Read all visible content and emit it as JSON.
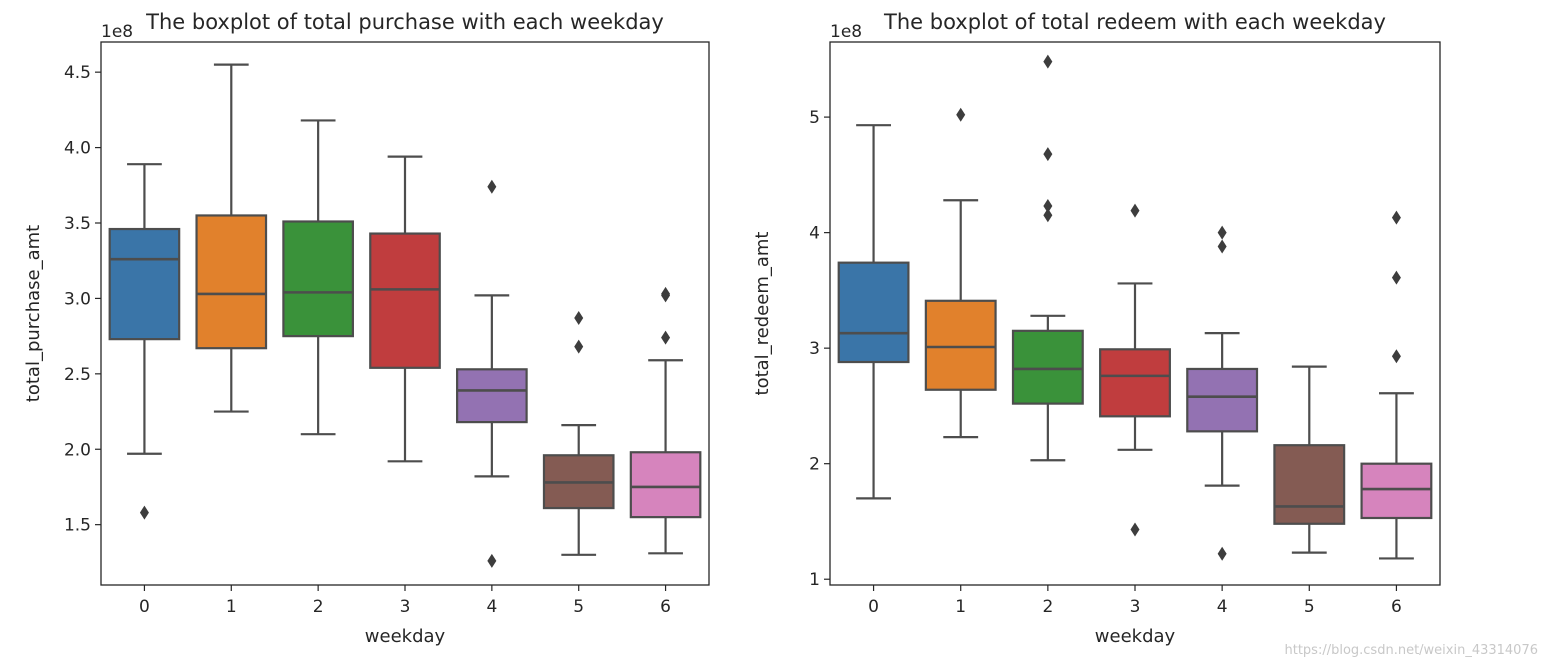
{
  "chart_data": [
    {
      "type": "box",
      "title": "The boxplot of total purchase with each weekday",
      "xlabel": "weekday",
      "ylabel": "total_purchase_amt",
      "offset_label": "1e8",
      "categories": [
        "0",
        "1",
        "2",
        "3",
        "4",
        "5",
        "6"
      ],
      "ylim": [
        1.1,
        4.7
      ],
      "yticks": [
        1.5,
        2.0,
        2.5,
        3.0,
        3.5,
        4.0,
        4.5
      ],
      "ytick_labels": [
        "1.5",
        "2.0",
        "2.5",
        "3.0",
        "3.5",
        "4.0",
        "4.5"
      ],
      "colors": [
        "#3a75a8",
        "#e1812c",
        "#3a923a",
        "#c03d3e",
        "#9372b2",
        "#845b53",
        "#d684bd"
      ],
      "boxes": [
        {
          "category": "0",
          "whisker_low": 1.97,
          "q1": 2.73,
          "median": 3.26,
          "q3": 3.46,
          "whisker_high": 3.89,
          "outliers": [
            1.58
          ]
        },
        {
          "category": "1",
          "whisker_low": 2.25,
          "q1": 2.67,
          "median": 3.03,
          "q3": 3.55,
          "whisker_high": 4.55,
          "outliers": []
        },
        {
          "category": "2",
          "whisker_low": 2.1,
          "q1": 2.75,
          "median": 3.04,
          "q3": 3.51,
          "whisker_high": 4.18,
          "outliers": []
        },
        {
          "category": "3",
          "whisker_low": 1.92,
          "q1": 2.54,
          "median": 3.06,
          "q3": 3.43,
          "whisker_high": 3.94,
          "outliers": []
        },
        {
          "category": "4",
          "whisker_low": 1.82,
          "q1": 2.18,
          "median": 2.39,
          "q3": 2.53,
          "whisker_high": 3.02,
          "outliers": [
            3.74,
            1.26
          ]
        },
        {
          "category": "5",
          "whisker_low": 1.3,
          "q1": 1.61,
          "median": 1.78,
          "q3": 1.96,
          "whisker_high": 2.16,
          "outliers": [
            2.87,
            2.68
          ]
        },
        {
          "category": "6",
          "whisker_low": 1.31,
          "q1": 1.55,
          "median": 1.75,
          "q3": 1.98,
          "whisker_high": 2.59,
          "outliers": [
            3.03,
            3.02,
            2.74
          ]
        }
      ]
    },
    {
      "type": "box",
      "title": "The boxplot of total redeem with each weekday",
      "xlabel": "weekday",
      "ylabel": "total_redeem_amt",
      "offset_label": "1e8",
      "categories": [
        "0",
        "1",
        "2",
        "3",
        "4",
        "5",
        "6"
      ],
      "ylim": [
        0.95,
        5.65
      ],
      "yticks": [
        1,
        2,
        3,
        4,
        5
      ],
      "ytick_labels": [
        "1",
        "2",
        "3",
        "4",
        "5"
      ],
      "colors": [
        "#3a75a8",
        "#e1812c",
        "#3a923a",
        "#c03d3e",
        "#9372b2",
        "#845b53",
        "#d684bd"
      ],
      "boxes": [
        {
          "category": "0",
          "whisker_low": 1.7,
          "q1": 2.88,
          "median": 3.13,
          "q3": 3.74,
          "whisker_high": 4.93,
          "outliers": []
        },
        {
          "category": "1",
          "whisker_low": 2.23,
          "q1": 2.64,
          "median": 3.01,
          "q3": 3.41,
          "whisker_high": 4.28,
          "outliers": [
            5.02
          ]
        },
        {
          "category": "2",
          "whisker_low": 2.03,
          "q1": 2.52,
          "median": 2.82,
          "q3": 3.15,
          "whisker_high": 3.28,
          "outliers": [
            5.48,
            4.68,
            4.23,
            4.15
          ]
        },
        {
          "category": "3",
          "whisker_low": 2.12,
          "q1": 2.41,
          "median": 2.76,
          "q3": 2.99,
          "whisker_high": 3.56,
          "outliers": [
            4.19,
            1.43
          ]
        },
        {
          "category": "4",
          "whisker_low": 1.81,
          "q1": 2.28,
          "median": 2.58,
          "q3": 2.82,
          "whisker_high": 3.13,
          "outliers": [
            4.0,
            3.88,
            1.22
          ]
        },
        {
          "category": "5",
          "whisker_low": 1.23,
          "q1": 1.48,
          "median": 1.63,
          "q3": 2.16,
          "whisker_high": 2.84,
          "outliers": []
        },
        {
          "category": "6",
          "whisker_low": 1.18,
          "q1": 1.53,
          "median": 1.78,
          "q3": 2.0,
          "whisker_high": 2.61,
          "outliers": [
            4.13,
            3.61,
            2.93
          ]
        }
      ]
    }
  ],
  "watermark": "https://blog.csdn.net/weixin_43314076"
}
